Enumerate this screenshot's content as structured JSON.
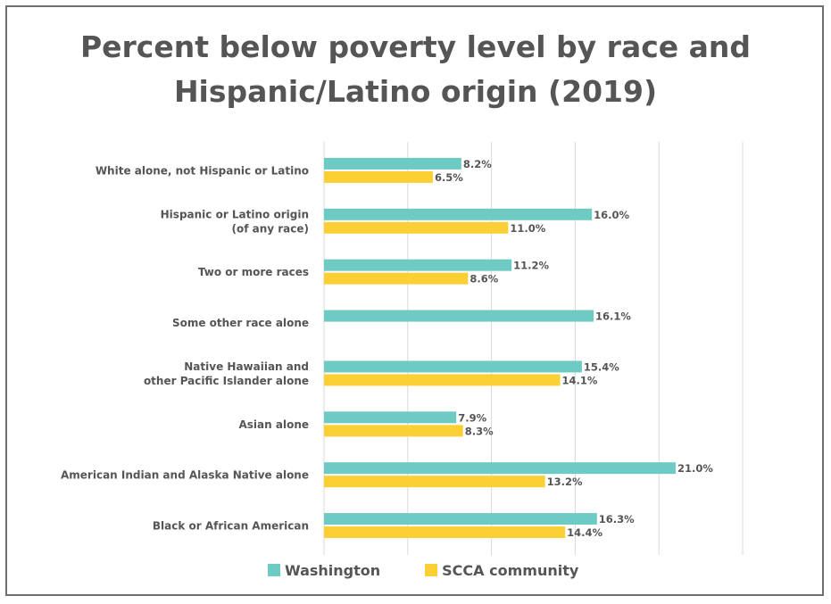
{
  "chart_data": {
    "type": "bar",
    "orientation": "horizontal",
    "title_lines": [
      "Percent below poverty level by race and",
      "Hispanic/Latino origin (2019)"
    ],
    "categories": [
      [
        "White alone, not Hispanic or Latino"
      ],
      [
        "Hispanic or Latino origin",
        "(of any race)"
      ],
      [
        "Two or more races"
      ],
      [
        "Some other race alone"
      ],
      [
        "Native Hawaiian and",
        "other Pacific Islander alone"
      ],
      [
        "Asian alone"
      ],
      [
        "American Indian and Alaska Native alone"
      ],
      [
        "Black or African American"
      ]
    ],
    "series": [
      {
        "name": "Washington",
        "color": "#6ecbc4",
        "values": [
          8.2,
          16.0,
          11.2,
          16.1,
          15.4,
          7.9,
          21.0,
          16.3
        ],
        "labels": [
          "8.2%",
          "16.0%",
          "11.2%",
          "16.1%",
          "15.4%",
          "7.9%",
          "21.0%",
          "16.3%"
        ]
      },
      {
        "name": "SCCA community",
        "color": "#fcd034",
        "values": [
          6.5,
          11.0,
          8.6,
          null,
          14.1,
          8.3,
          13.2,
          14.4
        ],
        "labels": [
          "6.5%",
          "11.0%",
          "8.6%",
          "",
          "14.1%",
          "8.3%",
          "13.2%",
          "14.4%"
        ]
      }
    ],
    "xlim": [
      0,
      25
    ],
    "grid": true,
    "legend_position": "bottom",
    "xlabel": "",
    "ylabel": ""
  },
  "legend": {
    "washington_label": "Washington",
    "scca_label": "SCCA community"
  }
}
